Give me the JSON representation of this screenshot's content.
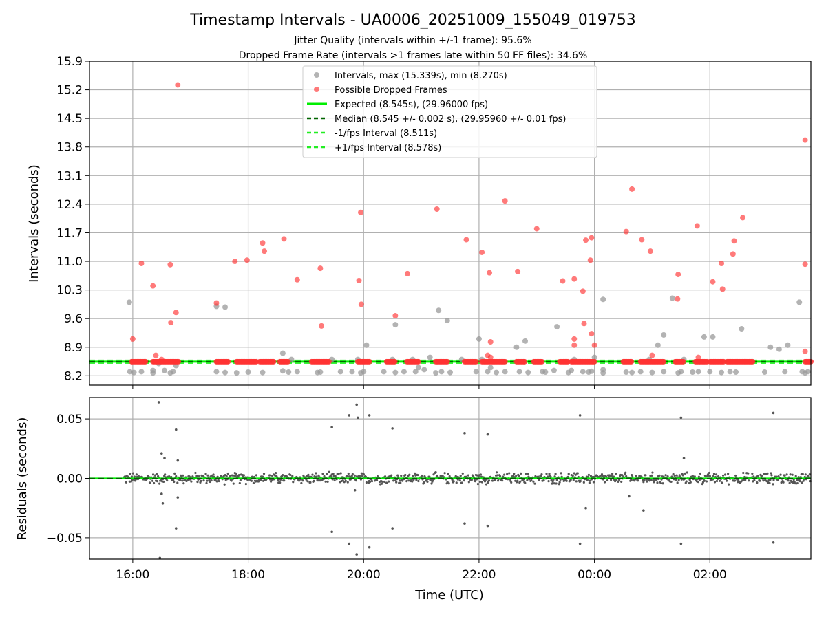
{
  "colors": {
    "intervals": "#999999",
    "dropped": "#ff3333",
    "expected": "#00ee00",
    "median": "#006400",
    "band": "#22ee22",
    "residual": "#555555",
    "grid": "#b0b0b0"
  },
  "chart_data": [
    {
      "type": "scatter",
      "title": "Timestamp Intervals - UA0006_20251009_155049_019753",
      "subtitle_1": "Jitter Quality (intervals within +/-1 frame): 95.6%",
      "subtitle_2": "Dropped Frame Rate (intervals >1 frames late within 50 FF files): 34.6%",
      "xlabel": "",
      "ylabel": "Intervals (seconds)",
      "x_unit": "hours since 00:00 UTC on start day",
      "xlim": [
        15.25,
        27.75
      ],
      "ylim": [
        7.97,
        15.9
      ],
      "yticks": [
        "8.2",
        "8.9",
        "9.6",
        "10.3",
        "11.0",
        "11.7",
        "12.4",
        "13.1",
        "13.8",
        "14.5",
        "15.2",
        "15.9"
      ],
      "ytick_values": [
        8.2,
        8.9,
        9.6,
        10.3,
        11.0,
        11.7,
        12.4,
        13.1,
        13.8,
        14.5,
        15.2,
        15.9
      ],
      "grid": true,
      "legend_position": "top-center",
      "legend": [
        "Intervals, max (15.339s), min (8.270s)",
        "Possible Dropped Frames",
        "Expected (8.545s), (29.96000 fps)",
        "Median (8.545 +/- 0.002 s), (29.95960 +/- 0.01 fps)",
        "-1/fps Interval (8.511s)",
        "+1/fps Interval (8.578s)"
      ],
      "reference_lines": {
        "expected": 8.545,
        "median": 8.545,
        "minus_one_frame": 8.511,
        "plus_one_frame": 8.578
      },
      "series": [
        {
          "name": "Intervals, max (15.339s), min (8.270s)",
          "points": [
            [
              15.94,
              10.0
            ],
            [
              15.95,
              8.3
            ],
            [
              16.02,
              8.28
            ],
            [
              16.15,
              8.3
            ],
            [
              16.35,
              8.33
            ],
            [
              16.35,
              8.27
            ],
            [
              16.45,
              8.5
            ],
            [
              16.55,
              8.33
            ],
            [
              16.65,
              8.27
            ],
            [
              16.7,
              8.3
            ],
            [
              16.75,
              8.45
            ],
            [
              17.45,
              9.9
            ],
            [
              17.45,
              8.3
            ],
            [
              17.6,
              9.88
            ],
            [
              17.6,
              8.28
            ],
            [
              17.8,
              8.27
            ],
            [
              18.0,
              8.29
            ],
            [
              18.25,
              8.28
            ],
            [
              18.6,
              8.75
            ],
            [
              18.6,
              8.32
            ],
            [
              18.7,
              8.29
            ],
            [
              18.75,
              8.6
            ],
            [
              18.85,
              8.3
            ],
            [
              19.2,
              8.28
            ],
            [
              19.25,
              8.29
            ],
            [
              19.45,
              8.6
            ],
            [
              19.6,
              8.3
            ],
            [
              19.8,
              8.3
            ],
            [
              19.9,
              8.6
            ],
            [
              19.95,
              8.27
            ],
            [
              20.0,
              8.3
            ],
            [
              20.05,
              8.95
            ],
            [
              20.35,
              8.3
            ],
            [
              20.5,
              8.6
            ],
            [
              20.55,
              9.45
            ],
            [
              20.55,
              8.28
            ],
            [
              20.7,
              8.3
            ],
            [
              20.85,
              8.6
            ],
            [
              20.9,
              8.3
            ],
            [
              20.95,
              8.4
            ],
            [
              21.05,
              8.35
            ],
            [
              21.15,
              8.65
            ],
            [
              21.25,
              8.27
            ],
            [
              21.3,
              9.8
            ],
            [
              21.35,
              8.3
            ],
            [
              21.45,
              9.55
            ],
            [
              21.5,
              8.28
            ],
            [
              21.7,
              8.6
            ],
            [
              21.95,
              8.3
            ],
            [
              22.0,
              9.1
            ],
            [
              22.05,
              8.6
            ],
            [
              22.15,
              8.3
            ],
            [
              22.2,
              8.4
            ],
            [
              22.3,
              8.28
            ],
            [
              22.45,
              8.3
            ],
            [
              22.65,
              8.9
            ],
            [
              22.7,
              8.3
            ],
            [
              22.8,
              9.05
            ],
            [
              22.85,
              8.28
            ],
            [
              23.1,
              8.3
            ],
            [
              23.15,
              8.29
            ],
            [
              23.3,
              8.33
            ],
            [
              23.35,
              9.4
            ],
            [
              23.55,
              8.28
            ],
            [
              23.6,
              8.33
            ],
            [
              23.65,
              8.6
            ],
            [
              23.8,
              8.3
            ],
            [
              23.9,
              8.29
            ],
            [
              23.95,
              8.31
            ],
            [
              24.0,
              8.65
            ],
            [
              24.15,
              8.35
            ],
            [
              24.15,
              10.07
            ],
            [
              24.15,
              8.27
            ],
            [
              24.55,
              8.29
            ],
            [
              24.65,
              8.28
            ],
            [
              24.8,
              8.3
            ],
            [
              24.95,
              8.6
            ],
            [
              25.0,
              8.28
            ],
            [
              25.1,
              8.95
            ],
            [
              25.2,
              9.2
            ],
            [
              25.2,
              8.3
            ],
            [
              25.35,
              10.1
            ],
            [
              25.45,
              8.27
            ],
            [
              25.5,
              8.3
            ],
            [
              25.55,
              8.6
            ],
            [
              25.7,
              8.29
            ],
            [
              25.8,
              8.3
            ],
            [
              25.9,
              9.15
            ],
            [
              26.0,
              8.3
            ],
            [
              26.05,
              9.15
            ],
            [
              26.2,
              8.28
            ],
            [
              26.35,
              8.3
            ],
            [
              26.45,
              8.29
            ],
            [
              26.55,
              9.35
            ],
            [
              26.95,
              8.29
            ],
            [
              27.05,
              8.9
            ],
            [
              27.2,
              8.85
            ],
            [
              27.3,
              8.3
            ],
            [
              27.35,
              8.95
            ],
            [
              27.55,
              10.0
            ],
            [
              27.6,
              8.3
            ],
            [
              27.65,
              8.27
            ],
            [
              27.7,
              8.3
            ]
          ]
        },
        {
          "name": "Possible Dropped Frames",
          "points": [
            [
              16.0,
              9.1
            ],
            [
              16.15,
              10.95
            ],
            [
              16.35,
              10.4
            ],
            [
              16.4,
              8.7
            ],
            [
              16.5,
              8.6
            ],
            [
              16.65,
              10.92
            ],
            [
              16.66,
              9.5
            ],
            [
              16.75,
              9.75
            ],
            [
              16.78,
              15.32
            ],
            [
              17.45,
              9.98
            ],
            [
              17.77,
              11.0
            ],
            [
              17.98,
              11.03
            ],
            [
              18.25,
              11.45
            ],
            [
              18.28,
              11.25
            ],
            [
              18.62,
              11.55
            ],
            [
              18.85,
              10.55
            ],
            [
              19.25,
              10.83
            ],
            [
              19.27,
              9.42
            ],
            [
              19.92,
              10.53
            ],
            [
              19.95,
              12.2
            ],
            [
              19.96,
              9.95
            ],
            [
              20.55,
              9.67
            ],
            [
              20.76,
              10.7
            ],
            [
              21.27,
              12.28
            ],
            [
              21.78,
              11.53
            ],
            [
              22.05,
              11.22
            ],
            [
              22.15,
              8.7
            ],
            [
              22.18,
              10.72
            ],
            [
              22.2,
              9.03
            ],
            [
              22.2,
              8.65
            ],
            [
              22.45,
              12.48
            ],
            [
              22.67,
              10.75
            ],
            [
              23.0,
              11.8
            ],
            [
              23.45,
              10.52
            ],
            [
              23.65,
              10.57
            ],
            [
              23.65,
              9.1
            ],
            [
              23.65,
              8.95
            ],
            [
              23.8,
              10.27
            ],
            [
              23.82,
              9.48
            ],
            [
              23.85,
              11.52
            ],
            [
              23.95,
              11.58
            ],
            [
              23.93,
              11.03
            ],
            [
              23.95,
              9.23
            ],
            [
              24.0,
              8.95
            ],
            [
              24.55,
              11.73
            ],
            [
              24.65,
              12.77
            ],
            [
              24.82,
              11.53
            ],
            [
              24.97,
              11.25
            ],
            [
              25.0,
              8.7
            ],
            [
              25.45,
              10.68
            ],
            [
              25.44,
              10.08
            ],
            [
              25.8,
              8.65
            ],
            [
              25.78,
              11.87
            ],
            [
              26.05,
              10.5
            ],
            [
              26.2,
              10.95
            ],
            [
              26.22,
              10.32
            ],
            [
              26.4,
              11.18
            ],
            [
              26.42,
              11.5
            ],
            [
              26.57,
              12.07
            ],
            [
              27.65,
              10.93
            ],
            [
              27.65,
              8.8
            ],
            [
              27.65,
              13.97
            ]
          ]
        }
      ],
      "dropped_baseline_runs": [
        [
          15.98,
          16.22
        ],
        [
          16.35,
          16.8
        ],
        [
          17.45,
          17.65
        ],
        [
          17.8,
          18.15
        ],
        [
          18.2,
          18.45
        ],
        [
          18.55,
          18.7
        ],
        [
          19.1,
          19.4
        ],
        [
          19.9,
          20.1
        ],
        [
          20.4,
          20.55
        ],
        [
          20.75,
          20.95
        ],
        [
          21.25,
          21.45
        ],
        [
          21.75,
          21.95
        ],
        [
          22.05,
          22.45
        ],
        [
          22.65,
          22.8
        ],
        [
          22.95,
          23.1
        ],
        [
          23.4,
          23.55
        ],
        [
          23.6,
          24.0
        ],
        [
          24.5,
          24.65
        ],
        [
          24.8,
          25.2
        ],
        [
          25.4,
          25.55
        ],
        [
          25.75,
          25.95
        ],
        [
          26.0,
          26.25
        ],
        [
          26.3,
          26.75
        ],
        [
          27.65,
          27.75
        ]
      ]
    },
    {
      "type": "scatter",
      "xlabel": "Time (UTC)",
      "ylabel": "Residuals (seconds)",
      "xlim": [
        15.25,
        27.75
      ],
      "ylim": [
        -0.068,
        0.068
      ],
      "xticks": [
        "16:00",
        "18:00",
        "20:00",
        "22:00",
        "00:00",
        "02:00"
      ],
      "xtick_values": [
        16,
        18,
        20,
        22,
        24,
        26
      ],
      "yticks": [
        "−0.05",
        "0.00",
        "0.05"
      ],
      "ytick_values": [
        -0.05,
        0.0,
        0.05
      ],
      "grid": true,
      "residual_band": {
        "x_start": 15.85,
        "x_end": 27.75,
        "amplitude": 0.004
      },
      "outliers": [
        [
          16.45,
          0.064
        ],
        [
          16.5,
          0.021
        ],
        [
          16.55,
          0.017
        ],
        [
          16.75,
          0.041
        ],
        [
          16.78,
          0.015
        ],
        [
          16.5,
          -0.013
        ],
        [
          16.52,
          -0.021
        ],
        [
          16.78,
          -0.016
        ],
        [
          16.75,
          -0.042
        ],
        [
          16.47,
          -0.067
        ],
        [
          19.45,
          0.043
        ],
        [
          19.75,
          0.053
        ],
        [
          19.88,
          0.062
        ],
        [
          19.9,
          0.051
        ],
        [
          20.1,
          0.053
        ],
        [
          20.5,
          0.042
        ],
        [
          19.45,
          -0.045
        ],
        [
          19.75,
          -0.055
        ],
        [
          19.88,
          -0.064
        ],
        [
          20.1,
          -0.058
        ],
        [
          20.5,
          -0.042
        ],
        [
          19.85,
          -0.01
        ],
        [
          21.75,
          0.038
        ],
        [
          22.15,
          0.037
        ],
        [
          21.75,
          -0.038
        ],
        [
          22.15,
          -0.04
        ],
        [
          23.75,
          0.053
        ],
        [
          23.75,
          -0.055
        ],
        [
          23.85,
          -0.025
        ],
        [
          24.6,
          -0.015
        ],
        [
          24.85,
          -0.027
        ],
        [
          25.5,
          0.051
        ],
        [
          25.55,
          0.017
        ],
        [
          25.5,
          -0.055
        ],
        [
          27.1,
          0.055
        ],
        [
          27.1,
          -0.054
        ]
      ]
    }
  ]
}
